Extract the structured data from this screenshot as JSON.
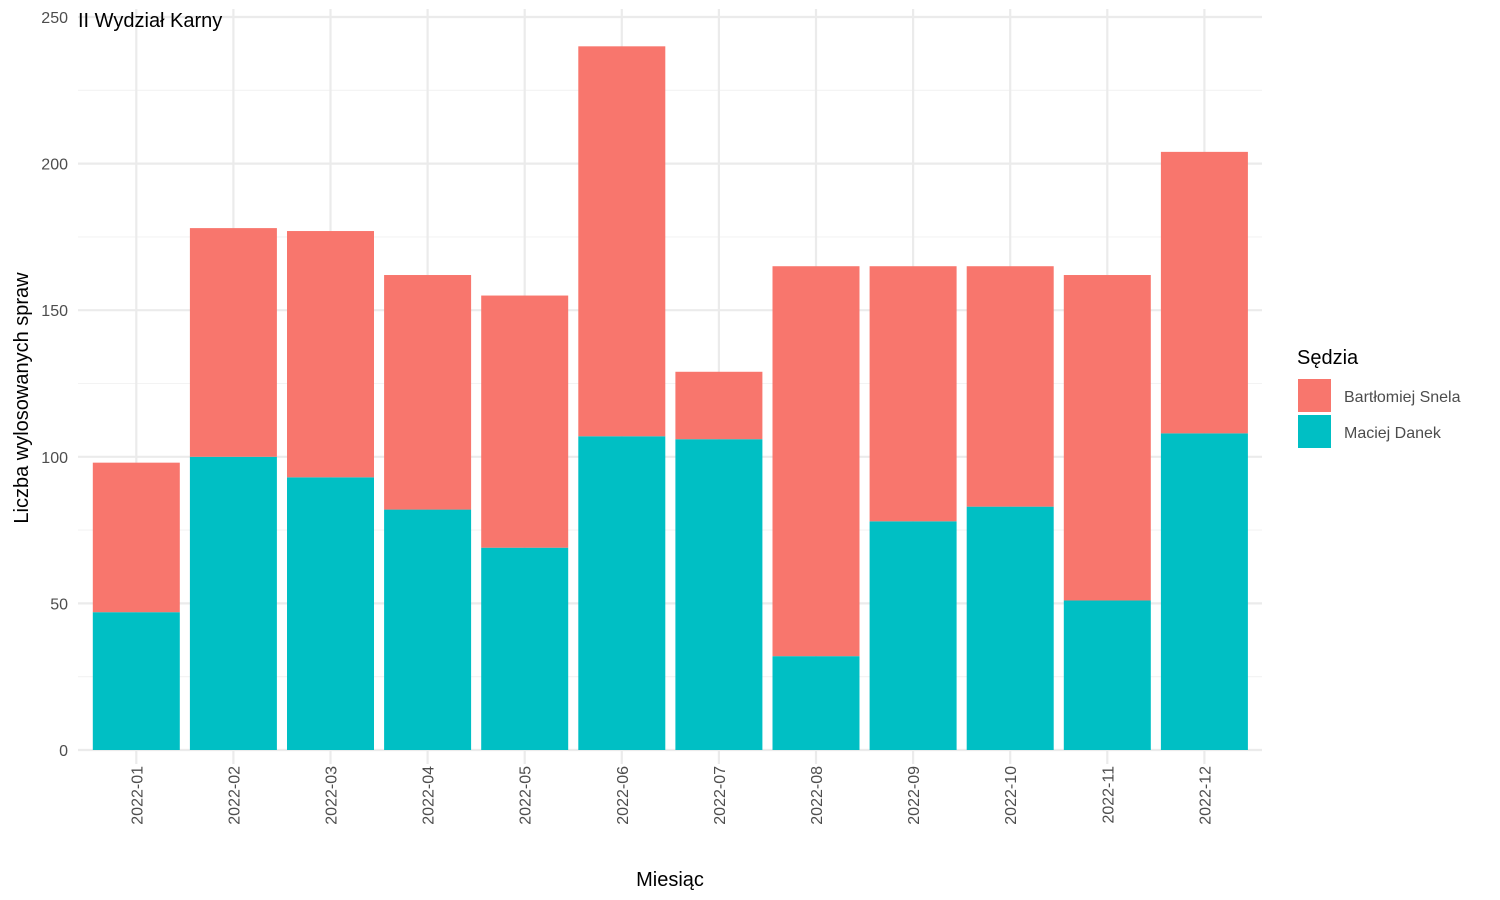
{
  "chart_data": {
    "type": "bar",
    "stacked": true,
    "title": "II Wydział Karny",
    "xlabel": "Miesiąc",
    "ylabel": "Liczba wylosowanych spraw",
    "categories": [
      "2022-01",
      "2022-02",
      "2022-03",
      "2022-04",
      "2022-05",
      "2022-06",
      "2022-07",
      "2022-08",
      "2022-09",
      "2022-10",
      "2022-11",
      "2022-12"
    ],
    "series": [
      {
        "name": "Maciej Danek",
        "color": "#00BFC4",
        "values": [
          47,
          100,
          93,
          82,
          69,
          107,
          106,
          32,
          78,
          83,
          51,
          108
        ]
      },
      {
        "name": "Bartłomiej Snela",
        "color": "#F8766D",
        "values": [
          51,
          78,
          84,
          80,
          86,
          133,
          23,
          133,
          87,
          82,
          111,
          96
        ]
      }
    ],
    "ylim": [
      0,
      250
    ],
    "yticks": [
      0,
      50,
      100,
      150,
      200,
      250
    ],
    "grid": true,
    "legend": {
      "title": "Sędzia",
      "position": "right",
      "order": [
        "Bartłomiej Snela",
        "Maciej Danek"
      ]
    }
  }
}
